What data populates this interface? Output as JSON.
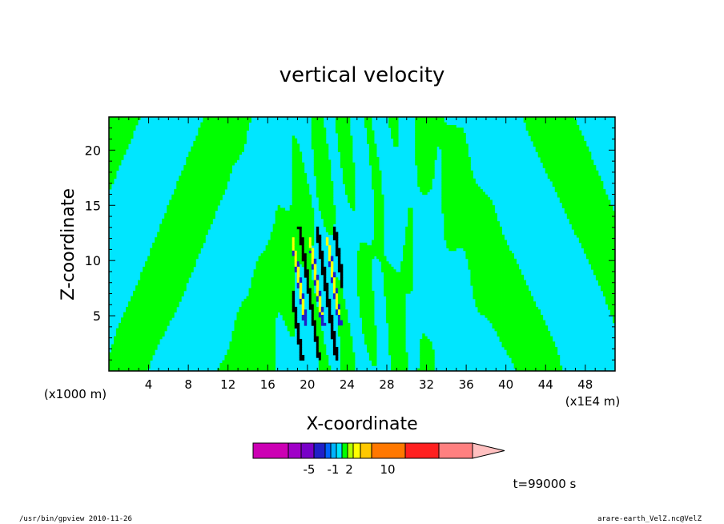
{
  "chart_data": {
    "type": "heatmap",
    "title": "vertical velocity",
    "xlabel": "X-coordinate",
    "ylabel": "Z-coordinate",
    "xlim": [
      0,
      51
    ],
    "ylim": [
      0,
      23
    ],
    "x_ticks": [
      4,
      8,
      12,
      16,
      20,
      24,
      28,
      32,
      36,
      40,
      44,
      48
    ],
    "y_ticks": [
      5,
      10,
      15,
      20
    ],
    "y_unit": "(x1000 m)",
    "x_unit": "(x1E4 m)",
    "time": "t=99000 s",
    "colorbar": {
      "labels": [
        "-5",
        "-1",
        "2",
        "10"
      ],
      "colors": [
        "#cc00b4",
        "#a000c8",
        "#7800c8",
        "#2020c8",
        "#0064ff",
        "#00b4ff",
        "#00e6ff",
        "#00ff00",
        "#b4ff00",
        "#ffff00",
        "#ffc800",
        "#ff7800",
        "#ff2020",
        "#ff8080",
        "#ffc0c0"
      ]
    },
    "field_colors": {
      "background": "#00e6ff",
      "positive": "#00ff00",
      "strong_positive": "#ffff00",
      "negative": "#2020c8",
      "strong_negative": "#000000",
      "contour": "#000000"
    }
  },
  "footer": {
    "left": "/usr/bin/gpview  2010-11-26",
    "right": "arare-earth_VelZ.nc@VelZ"
  }
}
